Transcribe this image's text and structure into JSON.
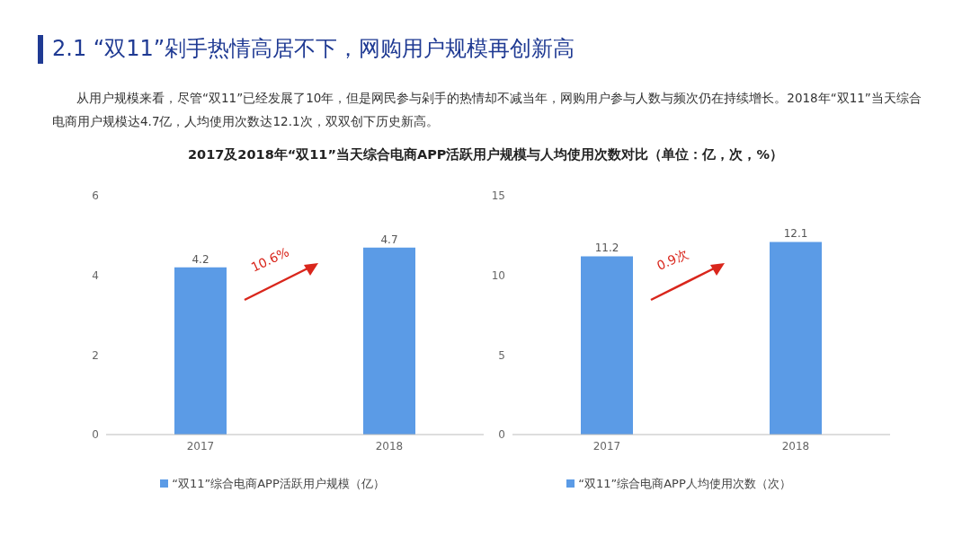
{
  "chart_data": [
    {
      "type": "bar",
      "title": "2.1 “双11”剁手热情高居不下，网购用户规模再创新高",
      "subtitle": "从用户规模来看，尽管“双11”已经发展了10年，但是网民参与剁手的热情却不减当年，网购用户参与人数与频次仍在持续增长。2018年“双11”当天综合电商用户规模达4.7亿，人均使用次数达12.1次，双双创下历史新高。",
      "annotations": [
        "2017及2018年“双11”当天综合电商APP活跃用户规模与人均使用次数对比（单位：亿，次，%）",
        "10.6%"
      ],
      "categories": [
        "2017",
        "2018"
      ],
      "series": [
        {
          "name": "“双11”综合电商APP活跃用户规模（亿）",
          "color": "#5b9be6",
          "values": [
            4.2,
            4.7
          ]
        }
      ],
      "ylim": [
        0,
        6
      ],
      "yticks": [
        0,
        2,
        4,
        6
      ],
      "data_labels": true,
      "legend": "bottom"
    },
    {
      "type": "bar",
      "annotations": [
        "0.9次"
      ],
      "categories": [
        "2017",
        "2018"
      ],
      "series": [
        {
          "name": "“双11”综合电商APP人均使用次数（次）",
          "color": "#5b9be6",
          "values": [
            11.2,
            12.1
          ]
        }
      ],
      "ylim": [
        0,
        15
      ],
      "yticks": [
        0,
        5,
        10,
        15
      ],
      "data_labels": true,
      "legend": "bottom"
    }
  ]
}
